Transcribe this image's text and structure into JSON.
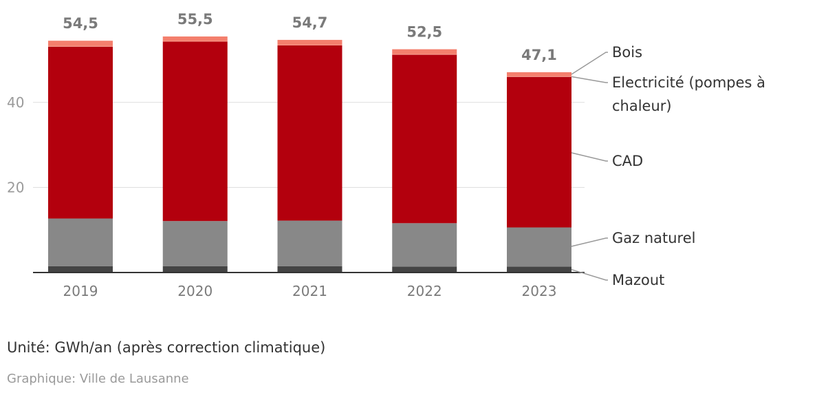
{
  "chart_data": {
    "type": "bar",
    "stacked": true,
    "categories": [
      "2019",
      "2020",
      "2021",
      "2022",
      "2023"
    ],
    "series": [
      {
        "name": "Mazout",
        "color": "#444444",
        "values": [
          1.5,
          1.5,
          1.5,
          1.4,
          1.4
        ]
      },
      {
        "name": "Gaz naturel",
        "color": "#888888",
        "values": [
          11.2,
          10.6,
          10.7,
          10.2,
          9.2
        ]
      },
      {
        "name": "CAD",
        "color": "#b3000d",
        "values": [
          40.4,
          42.2,
          41.2,
          39.6,
          35.4
        ]
      },
      {
        "name": "Electricité (pompes à chaleur)",
        "color": "#f47f6d",
        "values": [
          0.1,
          0.1,
          0.1,
          0.1,
          0.1
        ]
      },
      {
        "name": "Bois",
        "color": "#f47f6d",
        "values": [
          1.3,
          1.1,
          1.2,
          1.2,
          1.0
        ]
      }
    ],
    "totals": [
      "54,5",
      "55,5",
      "54,7",
      "52,5",
      "47,1"
    ],
    "ylim": [
      0,
      60
    ],
    "yticks": [
      "20",
      "40"
    ],
    "grid": true,
    "legend_position": "right"
  },
  "footer": {
    "unit": "Unité: GWh/an (après correction climatique)",
    "source": "Graphique: Ville de Lausanne"
  }
}
